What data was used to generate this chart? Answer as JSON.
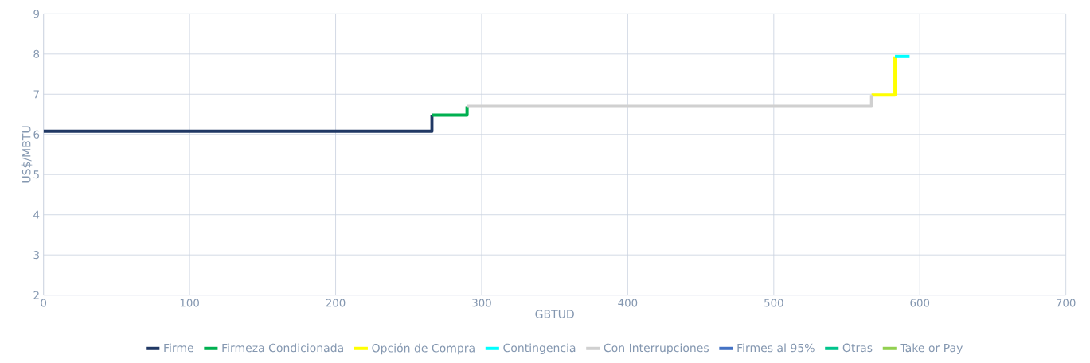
{
  "chart_data": {
    "type": "line",
    "xlabel": "GBTUD",
    "ylabel": "US$/MBTU",
    "xlim": [
      0,
      700
    ],
    "xticks": [
      0,
      100,
      200,
      300,
      400,
      500,
      600,
      700
    ],
    "ylim": [
      2,
      9
    ],
    "yticks": [
      2,
      3,
      4,
      5,
      6,
      7,
      8,
      9
    ],
    "grid": true,
    "legend": "bottom",
    "marker": "none",
    "line_style": "solid",
    "series": [
      {
        "name": "Firme",
        "color": "#203864",
        "x": [
          0,
          266,
          266
        ],
        "values": [
          6.08,
          6.08,
          6.48
        ]
      },
      {
        "name": "Firmeza Condicionada",
        "color": "#00b050",
        "x": [
          266,
          290,
          290
        ],
        "values": [
          6.48,
          6.48,
          6.7
        ]
      },
      {
        "name": "Opción de Compra",
        "color": "#ffff00",
        "x": [
          567,
          583,
          583
        ],
        "values": [
          6.98,
          6.98,
          7.94
        ]
      },
      {
        "name": "Contingencia",
        "color": "#00ffff",
        "x": [
          583,
          593
        ],
        "values": [
          7.94,
          7.94
        ]
      },
      {
        "name": "Con Interrupciones",
        "color": "#d0d0d0",
        "x": [
          290,
          567,
          567
        ],
        "values": [
          6.7,
          6.7,
          6.98
        ]
      },
      {
        "name": "Firmes al 95%",
        "color": "#4472c4"
      },
      {
        "name": "Otras",
        "color": "#00c48c"
      },
      {
        "name": "Take or Pay",
        "color": "#92d050"
      }
    ]
  }
}
